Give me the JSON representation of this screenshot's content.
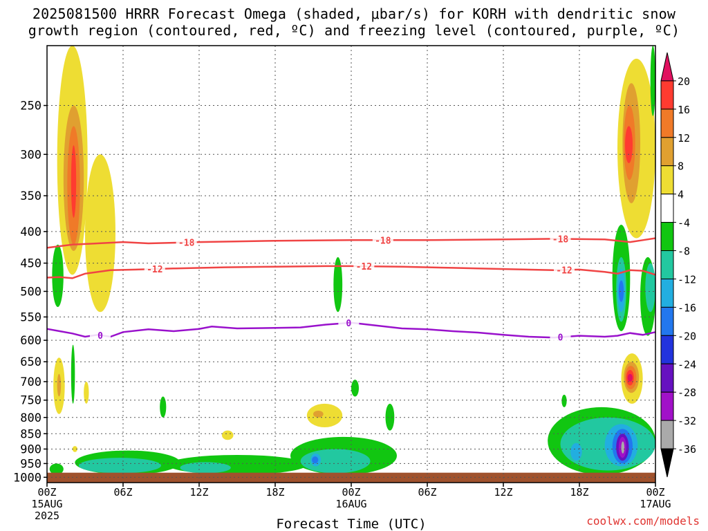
{
  "title_line1": "2025081500 HRRR Forecast Omega (shaded, μbar/s) for KORH with dendritic snow",
  "title_line2": "growth region (contoured, red, ºC) and freezing level (contoured, purple, ºC)",
  "credit": "coolwx.com/models",
  "chart_data": {
    "type": "heatmap",
    "title": "2025081500 HRRR Forecast Omega (shaded, μbar/s) for KORH with dendritic snow growth region (contoured, red, ºC) and freezing level (contoured, purple, ºC)",
    "xlabel": "Forecast Time (UTC)",
    "ylabel": "",
    "x_range_hours": [
      0,
      48
    ],
    "x_ticks": [
      {
        "h": 0,
        "label": "00Z",
        "sub": "15AUG",
        "sub2": "2025"
      },
      {
        "h": 6,
        "label": "06Z",
        "sub": "",
        "sub2": ""
      },
      {
        "h": 12,
        "label": "12Z",
        "sub": "",
        "sub2": ""
      },
      {
        "h": 18,
        "label": "18Z",
        "sub": "",
        "sub2": ""
      },
      {
        "h": 24,
        "label": "00Z",
        "sub": "16AUG",
        "sub2": ""
      },
      {
        "h": 30,
        "label": "06Z",
        "sub": "",
        "sub2": ""
      },
      {
        "h": 36,
        "label": "12Z",
        "sub": "",
        "sub2": ""
      },
      {
        "h": 42,
        "label": "18Z",
        "sub": "",
        "sub2": ""
      },
      {
        "h": 48,
        "label": "00Z",
        "sub": "17AUG",
        "sub2": ""
      }
    ],
    "y_ticks": [
      250,
      300,
      350,
      400,
      450,
      500,
      550,
      600,
      650,
      700,
      750,
      800,
      850,
      900,
      950,
      1000
    ],
    "y_range_hpa": [
      200,
      1020
    ],
    "colorbar": {
      "labels": [
        "20",
        "16",
        "12",
        "8",
        "4",
        "-4",
        "-8",
        "-12",
        "-16",
        "-20",
        "-24",
        "-28",
        "-32",
        "-36"
      ],
      "colors": [
        "#e0115f",
        "#ff3b30",
        "#f07a28",
        "#e0a030",
        "#eedd33",
        "#ffffff",
        "#11c611",
        "#22c8a0",
        "#22aee0",
        "#2277ee",
        "#2233dd",
        "#6611c0",
        "#a111c8",
        "#aaaaaa",
        "#000000"
      ]
    },
    "contours": [
      {
        "name": "dgz_-18",
        "label": "-18",
        "color": "#f04444",
        "points": [
          [
            0,
            425
          ],
          [
            2,
            420
          ],
          [
            4,
            418
          ],
          [
            6,
            416
          ],
          [
            8,
            418
          ],
          [
            12,
            416
          ],
          [
            18,
            414
          ],
          [
            24,
            413
          ],
          [
            30,
            413
          ],
          [
            36,
            412
          ],
          [
            40,
            411
          ],
          [
            44,
            412
          ],
          [
            46,
            416
          ],
          [
            47,
            413
          ],
          [
            48,
            410
          ]
        ],
        "label_hours": [
          11,
          26.5,
          40.5
        ]
      },
      {
        "name": "dgz_-12",
        "label": "-12",
        "color": "#f04444",
        "points": [
          [
            0,
            475
          ],
          [
            1,
            474
          ],
          [
            2,
            476
          ],
          [
            3,
            468
          ],
          [
            5,
            462
          ],
          [
            7,
            461
          ],
          [
            10,
            459
          ],
          [
            14,
            457
          ],
          [
            18,
            456
          ],
          [
            22,
            455
          ],
          [
            24,
            455
          ],
          [
            28,
            456
          ],
          [
            32,
            458
          ],
          [
            36,
            460
          ],
          [
            40,
            462
          ],
          [
            42,
            461
          ],
          [
            44,
            465
          ],
          [
            45,
            468
          ],
          [
            46,
            462
          ],
          [
            47,
            463
          ],
          [
            48,
            470
          ]
        ],
        "label_hours": [
          8.5,
          25,
          40.8
        ]
      },
      {
        "name": "frz_0",
        "label": "0",
        "color": "#9911cc",
        "points": [
          [
            0,
            575
          ],
          [
            1,
            580
          ],
          [
            2,
            585
          ],
          [
            3,
            592
          ],
          [
            4,
            588
          ],
          [
            5,
            592
          ],
          [
            6,
            582
          ],
          [
            8,
            576
          ],
          [
            10,
            580
          ],
          [
            12,
            575
          ],
          [
            13,
            570
          ],
          [
            15,
            574
          ],
          [
            18,
            573
          ],
          [
            20,
            572
          ],
          [
            22,
            566
          ],
          [
            24,
            562
          ],
          [
            26,
            568
          ],
          [
            28,
            574
          ],
          [
            30,
            576
          ],
          [
            32,
            580
          ],
          [
            34,
            583
          ],
          [
            36,
            588
          ],
          [
            38,
            592
          ],
          [
            40,
            594
          ],
          [
            42,
            590
          ],
          [
            44,
            592
          ],
          [
            45,
            590
          ],
          [
            46,
            584
          ],
          [
            47,
            588
          ],
          [
            48,
            582
          ]
        ],
        "label_hours": [
          4.2,
          23.8,
          40.5
        ]
      }
    ],
    "shaded_regions": [
      {
        "cat": "pos4",
        "h0": 0.8,
        "h1": 3.2,
        "p0": 200,
        "p1": 470,
        "shape": "blob"
      },
      {
        "cat": "pos4",
        "h0": 3.0,
        "h1": 5.4,
        "p0": 300,
        "p1": 540,
        "shape": "blob"
      },
      {
        "cat": "pos8",
        "h0": 1.3,
        "h1": 2.9,
        "p0": 250,
        "p1": 430,
        "shape": "blob"
      },
      {
        "cat": "pos12",
        "h0": 1.6,
        "h1": 2.6,
        "p0": 270,
        "p1": 420,
        "shape": "blob"
      },
      {
        "cat": "pos16",
        "h0": 1.9,
        "h1": 2.3,
        "p0": 290,
        "p1": 380,
        "shape": "blob"
      },
      {
        "cat": "pos4",
        "h0": 0.5,
        "h1": 1.4,
        "p0": 640,
        "p1": 790,
        "shape": "blob"
      },
      {
        "cat": "pos8",
        "h0": 0.8,
        "h1": 1.1,
        "p0": 680,
        "p1": 740,
        "shape": "blob"
      },
      {
        "cat": "pos4",
        "h0": 2.9,
        "h1": 3.3,
        "p0": 700,
        "p1": 760,
        "shape": "blob"
      },
      {
        "cat": "pos4",
        "h0": 2.0,
        "h1": 2.4,
        "p0": 890,
        "p1": 910,
        "shape": "blob"
      },
      {
        "cat": "pos4",
        "h0": 13.8,
        "h1": 14.7,
        "p0": 840,
        "p1": 870,
        "shape": "blob"
      },
      {
        "cat": "pos4",
        "h0": 20.5,
        "h1": 23.3,
        "p0": 760,
        "p1": 830,
        "shape": "blob"
      },
      {
        "cat": "pos8",
        "h0": 21.0,
        "h1": 21.8,
        "p0": 780,
        "p1": 800,
        "shape": "blob"
      },
      {
        "cat": "pos4",
        "h0": 30.8,
        "h1": 33.4,
        "p0": 993,
        "p1": 1003,
        "shape": "blob"
      },
      {
        "cat": "pos4",
        "h0": 45.0,
        "h1": 48.0,
        "p0": 210,
        "p1": 410,
        "shape": "blob"
      },
      {
        "cat": "pos8",
        "h0": 45.4,
        "h1": 46.8,
        "p0": 230,
        "p1": 360,
        "shape": "blob"
      },
      {
        "cat": "pos12",
        "h0": 45.5,
        "h1": 46.4,
        "p0": 250,
        "p1": 330,
        "shape": "blob"
      },
      {
        "cat": "pos16",
        "h0": 45.6,
        "h1": 46.2,
        "p0": 270,
        "p1": 310,
        "shape": "blob"
      },
      {
        "cat": "pos4",
        "h0": 45.3,
        "h1": 47.0,
        "p0": 630,
        "p1": 760,
        "shape": "blob"
      },
      {
        "cat": "pos8",
        "h0": 45.5,
        "h1": 46.7,
        "p0": 650,
        "p1": 730,
        "shape": "blob"
      },
      {
        "cat": "pos12",
        "h0": 45.6,
        "h1": 46.5,
        "p0": 660,
        "p1": 720,
        "shape": "blob"
      },
      {
        "cat": "pos16",
        "h0": 45.7,
        "h1": 46.3,
        "p0": 670,
        "p1": 710,
        "shape": "blob"
      },
      {
        "cat": "pos20",
        "h0": 45.8,
        "h1": 46.2,
        "p0": 680,
        "p1": 700,
        "shape": "blob"
      },
      {
        "cat": "neg4",
        "h0": 0.4,
        "h1": 1.3,
        "p0": 420,
        "p1": 530,
        "shape": "blob"
      },
      {
        "cat": "neg4",
        "h0": 1.9,
        "h1": 2.2,
        "p0": 610,
        "p1": 760,
        "shape": "blob"
      },
      {
        "cat": "neg4",
        "h0": 8.9,
        "h1": 9.4,
        "p0": 740,
        "p1": 800,
        "shape": "blob"
      },
      {
        "cat": "neg4",
        "h0": 22.6,
        "h1": 23.3,
        "p0": 440,
        "p1": 540,
        "shape": "blob"
      },
      {
        "cat": "neg4",
        "h0": 24.0,
        "h1": 24.6,
        "p0": 695,
        "p1": 740,
        "shape": "blob"
      },
      {
        "cat": "neg4",
        "h0": 26.7,
        "h1": 27.4,
        "p0": 760,
        "p1": 840,
        "shape": "blob"
      },
      {
        "cat": "neg4",
        "h0": 40.6,
        "h1": 41.0,
        "p0": 735,
        "p1": 770,
        "shape": "blob"
      },
      {
        "cat": "neg4",
        "h0": 44.6,
        "h1": 46.0,
        "p0": 390,
        "p1": 580,
        "shape": "blob"
      },
      {
        "cat": "neg8",
        "h0": 44.9,
        "h1": 45.7,
        "p0": 440,
        "p1": 560,
        "shape": "blob"
      },
      {
        "cat": "neg12",
        "h0": 45.0,
        "h1": 45.6,
        "p0": 460,
        "p1": 540,
        "shape": "blob"
      },
      {
        "cat": "neg16",
        "h0": 45.1,
        "h1": 45.5,
        "p0": 480,
        "p1": 520,
        "shape": "blob"
      },
      {
        "cat": "neg4",
        "h0": 46.8,
        "h1": 48.0,
        "p0": 440,
        "p1": 590,
        "shape": "blob"
      },
      {
        "cat": "neg8",
        "h0": 47.2,
        "h1": 48.0,
        "p0": 450,
        "p1": 540,
        "shape": "blob"
      },
      {
        "cat": "neg4",
        "h0": 47.6,
        "h1": 48.0,
        "p0": 200,
        "p1": 260,
        "shape": "blob"
      },
      {
        "cat": "neg4",
        "h0": 2.2,
        "h1": 10.5,
        "p0": 905,
        "p1": 990,
        "shape": "blob"
      },
      {
        "cat": "neg4",
        "h0": 9.5,
        "h1": 20.5,
        "p0": 920,
        "p1": 990,
        "shape": "blob"
      },
      {
        "cat": "neg4",
        "h0": 19.2,
        "h1": 27.6,
        "p0": 860,
        "p1": 990,
        "shape": "blob"
      },
      {
        "cat": "neg4",
        "h0": 0.2,
        "h1": 1.3,
        "p0": 950,
        "p1": 990,
        "shape": "blob"
      },
      {
        "cat": "neg8",
        "h0": 2.5,
        "h1": 9.0,
        "p0": 930,
        "p1": 985,
        "shape": "blob"
      },
      {
        "cat": "neg8",
        "h0": 10.5,
        "h1": 14.5,
        "p0": 945,
        "p1": 985,
        "shape": "blob"
      },
      {
        "cat": "neg8",
        "h0": 20.0,
        "h1": 25.5,
        "p0": 900,
        "p1": 985,
        "shape": "blob"
      },
      {
        "cat": "neg12",
        "h0": 20.8,
        "h1": 21.6,
        "p0": 915,
        "p1": 960,
        "shape": "blob"
      },
      {
        "cat": "neg16",
        "h0": 20.9,
        "h1": 21.4,
        "p0": 925,
        "p1": 950,
        "shape": "blob"
      },
      {
        "cat": "neg4",
        "h0": 39.5,
        "h1": 48.0,
        "p0": 770,
        "p1": 990,
        "shape": "blob"
      },
      {
        "cat": "neg8",
        "h0": 40.5,
        "h1": 48.0,
        "p0": 800,
        "p1": 975,
        "shape": "blob"
      },
      {
        "cat": "neg12",
        "h0": 41.3,
        "h1": 42.2,
        "p0": 880,
        "p1": 940,
        "shape": "blob"
      },
      {
        "cat": "neg12",
        "h0": 44.0,
        "h1": 46.6,
        "p0": 820,
        "p1": 960,
        "shape": "blob"
      },
      {
        "cat": "neg16",
        "h0": 44.6,
        "h1": 46.2,
        "p0": 835,
        "p1": 950,
        "shape": "blob"
      },
      {
        "cat": "neg24",
        "h0": 44.9,
        "h1": 45.9,
        "p0": 850,
        "p1": 940,
        "shape": "blob"
      },
      {
        "cat": "neg28",
        "h0": 45.1,
        "h1": 45.7,
        "p0": 860,
        "p1": 930,
        "shape": "blob"
      },
      {
        "cat": "neg32",
        "h0": 45.3,
        "h1": 45.55,
        "p0": 875,
        "p1": 915,
        "shape": "blob"
      }
    ],
    "ground_level_hpa": 983
  }
}
